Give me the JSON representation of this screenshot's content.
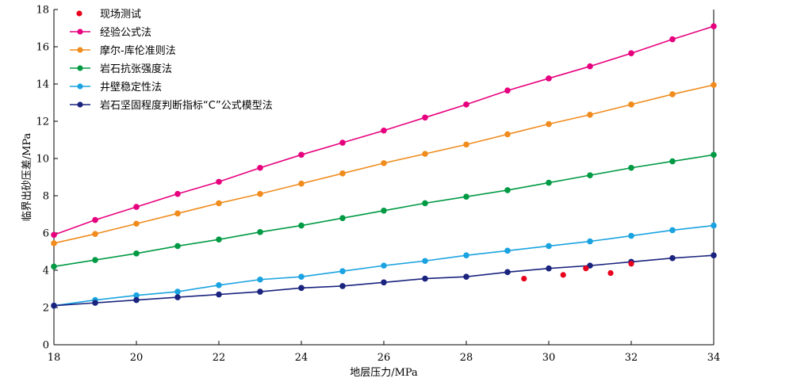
{
  "chart_data": {
    "type": "line",
    "xlabel": "地层压力/MPa",
    "ylabel": "临界出砂压差/MPa",
    "xlim": [
      18,
      34
    ],
    "ylim": [
      0,
      18
    ],
    "xticks": [
      "18",
      "20",
      "22",
      "24",
      "26",
      "28",
      "30",
      "32",
      "34"
    ],
    "yticks": [
      "0",
      "2",
      "4",
      "6",
      "8",
      "10",
      "12",
      "14",
      "16",
      "18"
    ],
    "grid": false,
    "legend_position": "top-left",
    "x": [
      18,
      19,
      20,
      21,
      22,
      23,
      24,
      25,
      26,
      27,
      28,
      29,
      30,
      31,
      32,
      33,
      34
    ],
    "series": [
      {
        "name": "经验公式法",
        "color": "#e6007e",
        "values": [
          5.9,
          6.7,
          7.4,
          8.1,
          8.75,
          9.5,
          10.2,
          10.85,
          11.5,
          12.2,
          12.9,
          13.65,
          14.3,
          14.95,
          15.65,
          16.4,
          17.1
        ]
      },
      {
        "name": "摩尔-库伦准则法",
        "color": "#f08c1e",
        "values": [
          5.45,
          5.95,
          6.5,
          7.05,
          7.6,
          8.1,
          8.65,
          9.2,
          9.75,
          10.25,
          10.75,
          11.3,
          11.85,
          12.35,
          12.9,
          13.45,
          13.95
        ]
      },
      {
        "name": "岩石抗张强度法",
        "color": "#009a44",
        "values": [
          4.2,
          4.55,
          4.9,
          5.3,
          5.65,
          6.05,
          6.4,
          6.8,
          7.2,
          7.6,
          7.95,
          8.3,
          8.7,
          9.1,
          9.5,
          9.85,
          10.2
        ]
      },
      {
        "name": "井壁稳定性法",
        "color": "#1aa3e0",
        "values": [
          2.1,
          2.4,
          2.65,
          2.85,
          3.2,
          3.5,
          3.65,
          3.95,
          4.25,
          4.5,
          4.8,
          5.05,
          5.3,
          5.55,
          5.85,
          6.15,
          6.4
        ]
      },
      {
        "name": "岩石坚固程度判断指标“C”公式模型法",
        "color": "#1a237e",
        "values": [
          2.1,
          2.25,
          2.4,
          2.55,
          2.7,
          2.85,
          3.05,
          3.15,
          3.35,
          3.55,
          3.65,
          3.9,
          4.1,
          4.25,
          4.45,
          4.65,
          4.8
        ]
      }
    ],
    "scatter": {
      "name": "现场测试",
      "color": "#e8001c",
      "points": [
        {
          "x": 29.4,
          "y": 3.55
        },
        {
          "x": 30.35,
          "y": 3.75
        },
        {
          "x": 30.9,
          "y": 4.1
        },
        {
          "x": 31.5,
          "y": 3.85
        },
        {
          "x": 32.0,
          "y": 4.35
        }
      ]
    }
  }
}
